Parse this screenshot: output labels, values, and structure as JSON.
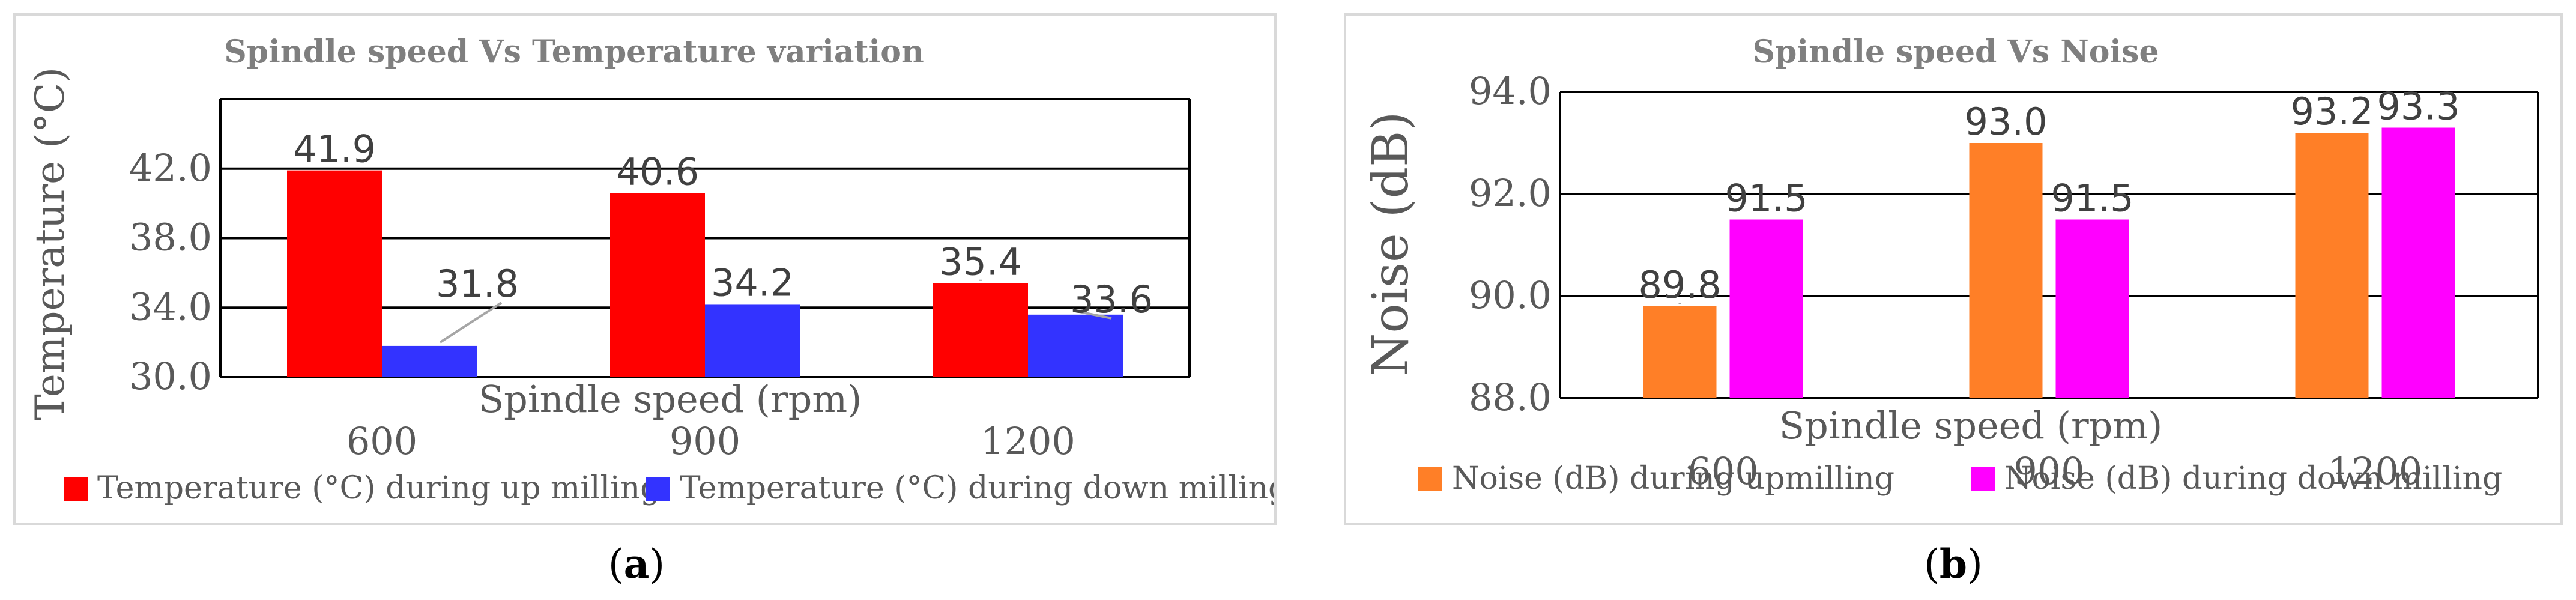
{
  "chart_data": [
    {
      "type": "bar",
      "title": "Spindle speed  Vs Temperature variation",
      "xlabel": "Spindle speed (rpm)",
      "ylabel": "Temperature (°C)",
      "categories": [
        "600",
        "900",
        "1200"
      ],
      "ylim": [
        30.0,
        46.0
      ],
      "yticks": [
        "30.0",
        "34.0",
        "38.0",
        "42.0"
      ],
      "grid": true,
      "legend": "bottom",
      "series": [
        {
          "name": "Temperature  (°C) during up milling",
          "values": [
            41.9,
            40.6,
            35.4
          ],
          "labels": [
            "41.9",
            "40.6",
            "35.4"
          ],
          "color": "#ff0000"
        },
        {
          "name": "Temperature (°C) during down milling",
          "values": [
            31.8,
            34.2,
            33.6
          ],
          "labels": [
            "31.8",
            "34.2",
            "33.6"
          ],
          "color": "#3333ff"
        }
      ]
    },
    {
      "type": "bar",
      "title": "Spindle speed Vs Noise",
      "xlabel": "Spindle speed (rpm)",
      "ylabel": "Noise (dB)",
      "categories": [
        "600",
        "900",
        "1200"
      ],
      "ylim": [
        88.0,
        94.0
      ],
      "yticks": [
        "88.0",
        "90.0",
        "92.0",
        "94.0"
      ],
      "grid": true,
      "legend": "bottom",
      "series": [
        {
          "name": "Noise (dB) during upmilling",
          "values": [
            89.8,
            93.0,
            93.2
          ],
          "labels": [
            "89.8",
            "93.0",
            "93.2"
          ],
          "color": "#ff7f27"
        },
        {
          "name": "Noise (dB) during down milling",
          "values": [
            91.5,
            91.5,
            93.3
          ],
          "labels": [
            "91.5",
            "91.5",
            "93.3"
          ],
          "color": "#ff00ff"
        }
      ]
    }
  ],
  "captions": {
    "a": "a",
    "b": "b"
  }
}
